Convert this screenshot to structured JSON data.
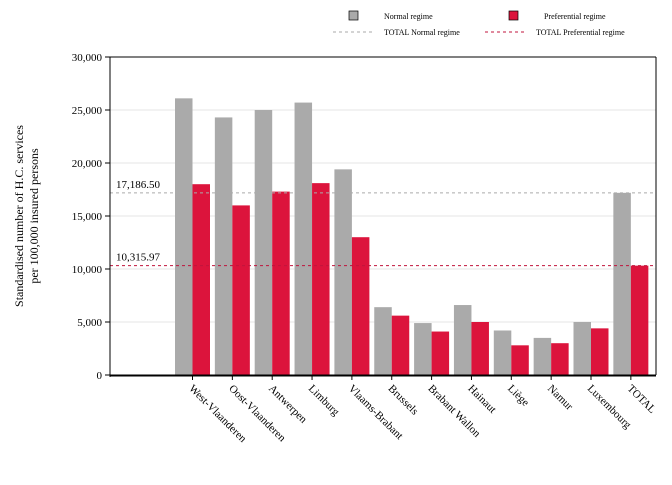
{
  "chart_data": {
    "type": "bar",
    "categories": [
      "West-Vlaanderen",
      "Oost-Vlaanderen",
      "Antwerpen",
      "Limburg",
      "Vlaams-Brabant",
      "Brussels",
      "Brabant Wallon",
      "Hainaut",
      "Liège",
      "Namur",
      "Luxembourg",
      "TOTAL"
    ],
    "series": [
      {
        "name": "Normal regime",
        "color": "#aaaaaa",
        "values": [
          26100,
          24300,
          25000,
          25700,
          19400,
          6400,
          4900,
          6600,
          4200,
          3500,
          5000,
          17186.5
        ]
      },
      {
        "name": "Preferential regime",
        "color": "#dc143c",
        "values": [
          18000,
          16000,
          17300,
          18100,
          13000,
          5600,
          4100,
          5000,
          2800,
          3000,
          4400,
          10315.97
        ]
      }
    ],
    "reference_lines": [
      {
        "name": "TOTAL Normal regime",
        "value": 17186.5,
        "label": "17,186.50",
        "color": "#aaaaaa",
        "style": "dashed"
      },
      {
        "name": "TOTAL Preferential regime",
        "value": 10315.97,
        "label": "10,315.97",
        "color": "#c0143c",
        "style": "dashed"
      }
    ],
    "ylabel_lines": [
      "Standardised number of H.C. services",
      "per 100,000 insured persons"
    ],
    "xlabel": "",
    "title": "",
    "ylim": [
      0,
      30000
    ],
    "yticks": [
      0,
      5000,
      10000,
      15000,
      20000,
      25000,
      30000
    ],
    "ytick_labels": [
      "0",
      "5,000",
      "10,000",
      "15,000",
      "20,000",
      "25,000",
      "30,000"
    ],
    "grid": true,
    "legend_position": "top-right"
  }
}
